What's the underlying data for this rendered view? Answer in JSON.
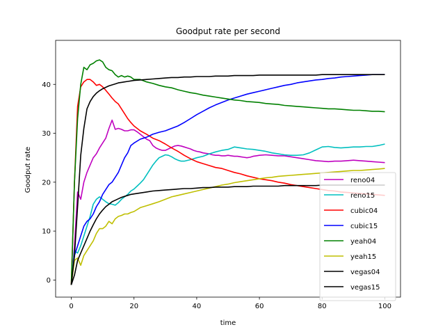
{
  "chart_data": {
    "type": "line",
    "title": "Goodput rate per second",
    "xlabel": "time",
    "ylabel": "Goodput rate",
    "xlim": [
      -5,
      105
    ],
    "ylim": [
      -3.5,
      49
    ],
    "xticks": [
      0,
      20,
      40,
      60,
      80,
      100
    ],
    "yticks": [
      0,
      10,
      20,
      30,
      40
    ],
    "legend_position": "lower-right",
    "grid": false,
    "series": [
      {
        "name": "reno04",
        "color": "#bf00bf",
        "x": [
          0,
          1,
          2,
          3,
          4,
          5,
          6,
          7,
          8,
          9,
          10,
          11,
          12,
          13,
          14,
          15,
          16,
          17,
          18,
          19,
          20,
          21,
          22,
          23,
          24,
          25,
          26,
          27,
          28,
          29,
          30,
          31,
          32,
          33,
          34,
          35,
          36,
          37,
          38,
          39,
          40,
          41,
          42,
          43,
          44,
          45,
          46,
          47,
          48,
          49,
          50,
          51,
          52,
          53,
          54,
          55,
          56,
          57,
          58,
          59,
          60,
          62,
          64,
          66,
          68,
          70,
          72,
          74,
          76,
          78,
          80,
          82,
          84,
          86,
          88,
          90,
          92,
          94,
          96,
          98,
          100
        ],
        "y": [
          -1,
          7,
          18,
          16.5,
          20,
          22,
          23.5,
          25,
          25.8,
          27,
          28,
          29,
          31,
          32.7,
          30.8,
          31,
          30.8,
          30.5,
          30.5,
          30.7,
          30.7,
          30.3,
          29.8,
          29.3,
          28.8,
          28.5,
          27.5,
          27,
          26.7,
          26.5,
          26.5,
          26.8,
          27.1,
          27.4,
          27.5,
          27.4,
          27.2,
          27,
          26.8,
          26.5,
          26.3,
          26.2,
          26,
          25.9,
          25.8,
          25.6,
          25.5,
          25.5,
          25.4,
          25.4,
          25.5,
          25.4,
          25.3,
          25.3,
          25.2,
          25.1,
          25,
          25.1,
          25.3,
          25.4,
          25.5,
          25.6,
          25.5,
          25.4,
          25.4,
          25.2,
          25,
          24.8,
          24.6,
          24.4,
          24.3,
          24.2,
          24.3,
          24.3,
          24.4,
          24.5,
          24.4,
          24.3,
          24.2,
          24.1,
          24
        ]
      },
      {
        "name": "reno15",
        "color": "#00bfbf",
        "x": [
          0,
          1,
          2,
          3,
          4,
          5,
          6,
          7,
          8,
          9,
          10,
          11,
          12,
          13,
          14,
          15,
          16,
          17,
          18,
          19,
          20,
          21,
          22,
          23,
          24,
          25,
          26,
          27,
          28,
          29,
          30,
          31,
          32,
          33,
          34,
          35,
          36,
          38,
          40,
          42,
          44,
          46,
          48,
          50,
          52,
          54,
          56,
          58,
          60,
          62,
          64,
          66,
          68,
          70,
          72,
          74,
          76,
          78,
          80,
          82,
          84,
          86,
          88,
          90,
          92,
          94,
          96,
          98,
          100
        ],
        "y": [
          -1,
          6,
          5.5,
          7,
          9,
          11,
          13,
          15.5,
          16.5,
          17,
          16.5,
          16,
          15.6,
          15.5,
          15.3,
          15.8,
          16.5,
          17,
          17.5,
          18.2,
          18.6,
          19.2,
          19.8,
          20.5,
          21.5,
          22.5,
          23.5,
          24.3,
          25,
          25.3,
          25.6,
          25.5,
          25.2,
          24.8,
          24.5,
          24.3,
          24.3,
          24.6,
          25,
          25.3,
          25.8,
          26.2,
          26.5,
          26.7,
          27.2,
          27,
          26.8,
          26.7,
          26.5,
          26.3,
          26,
          25.8,
          25.6,
          25.5,
          25.5,
          25.6,
          26,
          26.6,
          27.2,
          27.3,
          27.1,
          27,
          27.1,
          27.2,
          27.2,
          27.3,
          27.3,
          27.5,
          27.8
        ]
      },
      {
        "name": "cubic04",
        "color": "#ff0000",
        "x": [
          0,
          1,
          2,
          3,
          4,
          5,
          6,
          7,
          8,
          9,
          10,
          11,
          12,
          13,
          14,
          15,
          16,
          17,
          18,
          19,
          20,
          22,
          24,
          26,
          28,
          30,
          32,
          34,
          36,
          38,
          40,
          42,
          44,
          46,
          48,
          50,
          52,
          54,
          56,
          58,
          60,
          62,
          64,
          66,
          68,
          70,
          72,
          74,
          76,
          78,
          80,
          82,
          84,
          86,
          88,
          90,
          92,
          94,
          96,
          98,
          100
        ],
        "y": [
          -1,
          20,
          35.5,
          39.5,
          40.5,
          41,
          41,
          40.5,
          39.8,
          40,
          39.5,
          38.8,
          38,
          37.2,
          36.5,
          36,
          35,
          34,
          33,
          32.2,
          31.5,
          30.5,
          29.8,
          29,
          28.5,
          27.8,
          27,
          26.3,
          25.5,
          24.8,
          24.2,
          23.8,
          23.4,
          23,
          22.8,
          22.4,
          22,
          21.7,
          21.3,
          21,
          20.7,
          20.5,
          20.3,
          20,
          19.8,
          19.5,
          19.3,
          19.1,
          18.9,
          18.7,
          18.5,
          18.3,
          18.2,
          18,
          17.9,
          17.8,
          17.7,
          17.6,
          17.5,
          17.4,
          17.3
        ]
      },
      {
        "name": "cubic15",
        "color": "#0000ff",
        "x": [
          0,
          1,
          2,
          3,
          4,
          5,
          6,
          7,
          8,
          9,
          10,
          11,
          12,
          13,
          14,
          15,
          16,
          17,
          18,
          19,
          20,
          22,
          24,
          26,
          28,
          30,
          32,
          34,
          36,
          38,
          40,
          42,
          44,
          46,
          48,
          50,
          52,
          54,
          56,
          58,
          60,
          62,
          64,
          66,
          68,
          70,
          72,
          74,
          76,
          78,
          80,
          82,
          84,
          86,
          88,
          90,
          92,
          94,
          96,
          98,
          100
        ],
        "y": [
          -1,
          5,
          7,
          9,
          11,
          12,
          12.5,
          13.5,
          15,
          16,
          17.5,
          18.5,
          19.5,
          20,
          21,
          22,
          23.5,
          25,
          26,
          27.5,
          28,
          28.8,
          29.2,
          29.8,
          30.2,
          30.5,
          31,
          31.5,
          32.2,
          33,
          33.8,
          34.5,
          35.2,
          35.8,
          36.3,
          36.8,
          37.2,
          37.6,
          38,
          38.3,
          38.6,
          38.9,
          39.2,
          39.5,
          39.8,
          40,
          40.3,
          40.5,
          40.7,
          40.9,
          41,
          41.2,
          41.3,
          41.5,
          41.6,
          41.7,
          41.8,
          41.9,
          42,
          42,
          42
        ]
      },
      {
        "name": "yeah04",
        "color": "#008000",
        "x": [
          0,
          1,
          2,
          3,
          4,
          5,
          6,
          7,
          8,
          9,
          10,
          11,
          12,
          13,
          14,
          15,
          16,
          17,
          18,
          19,
          20,
          22,
          24,
          26,
          28,
          30,
          32,
          34,
          36,
          38,
          40,
          42,
          44,
          46,
          48,
          50,
          52,
          54,
          56,
          58,
          60,
          62,
          64,
          66,
          68,
          70,
          72,
          74,
          76,
          78,
          80,
          82,
          84,
          86,
          88,
          90,
          92,
          94,
          96,
          98,
          100
        ],
        "y": [
          -1,
          20,
          33,
          40,
          43.5,
          43,
          44,
          44.3,
          44.8,
          45,
          44.6,
          43.5,
          43,
          42.8,
          42,
          41.5,
          41.8,
          41.5,
          41.7,
          41.5,
          41,
          41,
          40.5,
          40.2,
          39.8,
          39.5,
          39.3,
          38.9,
          38.6,
          38.3,
          38.1,
          37.8,
          37.6,
          37.4,
          37.2,
          37,
          36.8,
          36.7,
          36.5,
          36.4,
          36.3,
          36.1,
          36,
          35.9,
          35.7,
          35.6,
          35.5,
          35.4,
          35.3,
          35.2,
          35.1,
          35,
          35,
          34.9,
          34.8,
          34.7,
          34.7,
          34.6,
          34.5,
          34.5,
          34.4
        ]
      },
      {
        "name": "yeah15",
        "color": "#bfbf00",
        "x": [
          0,
          1,
          2,
          3,
          4,
          5,
          6,
          7,
          8,
          9,
          10,
          11,
          12,
          13,
          14,
          15,
          16,
          17,
          18,
          19,
          20,
          22,
          24,
          26,
          28,
          30,
          32,
          34,
          36,
          38,
          40,
          42,
          44,
          46,
          48,
          50,
          52,
          54,
          56,
          58,
          60,
          62,
          64,
          66,
          68,
          70,
          72,
          74,
          76,
          78,
          80,
          82,
          84,
          86,
          88,
          90,
          92,
          94,
          96,
          98,
          100
        ],
        "y": [
          -1,
          4,
          4.5,
          3,
          5,
          6,
          7,
          8,
          9.5,
          10.5,
          10.5,
          11,
          12,
          11.5,
          12.5,
          13,
          13.2,
          13.5,
          13.5,
          13.8,
          14,
          14.8,
          15.2,
          15.6,
          16,
          16.5,
          17,
          17.3,
          17.6,
          17.9,
          18.2,
          18.5,
          18.8,
          19.1,
          19.4,
          19.6,
          19.9,
          20.1,
          20.3,
          20.5,
          20.7,
          20.9,
          21,
          21.2,
          21.3,
          21.4,
          21.5,
          21.6,
          21.7,
          21.8,
          21.9,
          22,
          22.1,
          22.2,
          22.3,
          22.4,
          22.4,
          22.5,
          22.6,
          22.7,
          22.8
        ]
      },
      {
        "name": "vegas04",
        "color": "#000000",
        "x": [
          0,
          1,
          2,
          3,
          4,
          5,
          6,
          7,
          8,
          9,
          10,
          11,
          12,
          13,
          14,
          15,
          16,
          17,
          18,
          19,
          20,
          22,
          24,
          26,
          28,
          30,
          32,
          34,
          36,
          38,
          40,
          42,
          44,
          46,
          48,
          50,
          52,
          54,
          56,
          58,
          60,
          62,
          64,
          66,
          68,
          70,
          72,
          74,
          76,
          78,
          80,
          82,
          84,
          86,
          88,
          90,
          92,
          94,
          96,
          98,
          100
        ],
        "y": [
          -1,
          5,
          15,
          25.5,
          31,
          35,
          36.5,
          37.5,
          38.2,
          38.7,
          39.1,
          39.4,
          39.7,
          39.9,
          40.1,
          40.3,
          40.4,
          40.5,
          40.6,
          40.7,
          40.8,
          40.9,
          41,
          41.1,
          41.2,
          41.3,
          41.4,
          41.4,
          41.5,
          41.5,
          41.6,
          41.6,
          41.6,
          41.7,
          41.7,
          41.7,
          41.8,
          41.8,
          41.8,
          41.8,
          41.9,
          41.9,
          41.9,
          41.9,
          41.9,
          41.9,
          41.9,
          41.9,
          41.9,
          41.9,
          42,
          42,
          42,
          42,
          42,
          42,
          42,
          42,
          42,
          42,
          42
        ]
      },
      {
        "name": "vegas15",
        "color": "#000000",
        "x": [
          0,
          1,
          2,
          3,
          4,
          5,
          6,
          7,
          8,
          9,
          10,
          11,
          12,
          13,
          14,
          15,
          16,
          17,
          18,
          19,
          20,
          22,
          24,
          26,
          28,
          30,
          32,
          34,
          36,
          38,
          40,
          42,
          44,
          46,
          48,
          50,
          52,
          54,
          56,
          58,
          60,
          62,
          64,
          66,
          68,
          70,
          72,
          74,
          76,
          78,
          80,
          82,
          84,
          86,
          88,
          90,
          92,
          94,
          96,
          98,
          100
        ],
        "y": [
          -1,
          1,
          4,
          5.5,
          7,
          8.5,
          10,
          11.3,
          12.5,
          13.5,
          14.3,
          15,
          15.5,
          16,
          16.3,
          16.6,
          16.9,
          17.1,
          17.3,
          17.5,
          17.6,
          17.8,
          18,
          18.2,
          18.3,
          18.4,
          18.5,
          18.6,
          18.7,
          18.7,
          18.8,
          18.9,
          18.9,
          19,
          19,
          19,
          19.1,
          19.1,
          19.1,
          19.2,
          19.2,
          19.2,
          19.2,
          19.2,
          19.3,
          19.3,
          19.3,
          19.3,
          19.3,
          19.3,
          19.4,
          19.4,
          19.4,
          19.4,
          19.4,
          19.4,
          19.4,
          19.4,
          19.4,
          19.4,
          19.4
        ]
      }
    ]
  }
}
